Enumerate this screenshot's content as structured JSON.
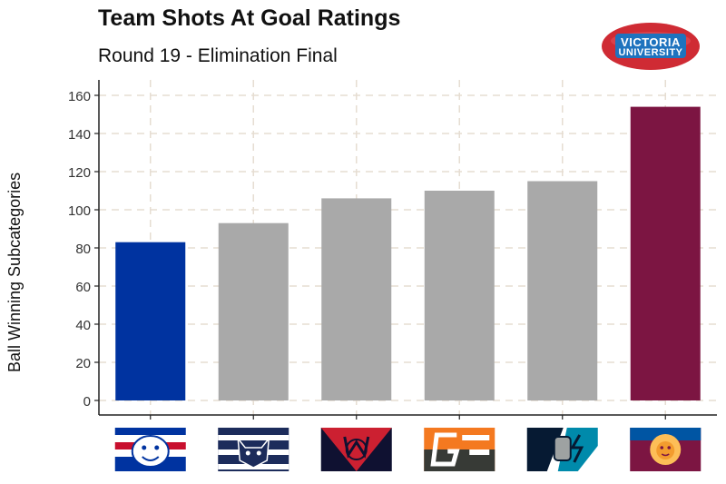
{
  "chart_data": {
    "type": "bar",
    "title": "Team Shots At Goal Ratings",
    "subtitle": "Round 19 - Elimination Final",
    "ylabel": "Ball Winning Subcategories",
    "xlabel": "",
    "ylim": [
      0,
      168
    ],
    "yticks": [
      0,
      20,
      40,
      60,
      80,
      100,
      120,
      140,
      160
    ],
    "grid": true,
    "categories": [
      "Western Bulldogs",
      "Geelong",
      "Melbourne",
      "GWS Giants",
      "Port Adelaide",
      "Brisbane Lions"
    ],
    "values": [
      83,
      93,
      106,
      110,
      115,
      154
    ],
    "bar_colors": [
      "#0033a0",
      "#a9a9a9",
      "#a9a9a9",
      "#a9a9a9",
      "#a9a9a9",
      "#7c1542"
    ],
    "category_icons": [
      "bulldogs-logo-icon",
      "geelong-cats-logo-icon",
      "melbourne-demons-logo-icon",
      "gws-giants-logo-icon",
      "port-adelaide-logo-icon",
      "brisbane-lions-logo-icon"
    ]
  },
  "brand": {
    "line1": "VICTORIA",
    "line2": "UNIVERSITY",
    "icon": "victoria-university-football-logo-icon"
  }
}
